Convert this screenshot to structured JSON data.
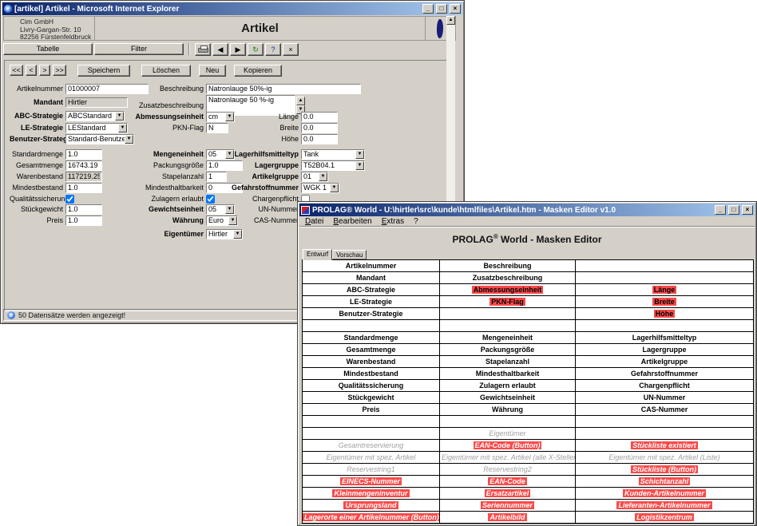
{
  "ie_window": {
    "title": "[artikel] Artikel - Microsoft Internet Explorer",
    "window_buttons": {
      "minimize": "_",
      "maximize": "□",
      "close": "×"
    },
    "company": {
      "line1": "Cim GmbH",
      "line2": "Livry-Gargan-Str. 10",
      "line3": "82256 Fürstenfeldbruck"
    },
    "page_title": "Artikel",
    "view_tabs": [
      {
        "label": "Tabelle"
      },
      {
        "label": "Filter"
      }
    ],
    "toolbar": {
      "prev_glyph": "◀",
      "next_glyph": "▶",
      "refresh_glyph": "↻",
      "help_glyph": "?",
      "close_glyph": "×",
      "scroll_up_glyph": "▲"
    },
    "record_nav": [
      "<<",
      "<",
      ">",
      ">>"
    ],
    "actions": [
      "Speichern",
      "Löschen",
      "Neu",
      "Kopieren"
    ],
    "form": {
      "artikelnummer": {
        "label": "Artikelnummer",
        "value": "01000007"
      },
      "mandant": {
        "label": "Mandant",
        "value": "Hirtler"
      },
      "abc_strategie": {
        "label": "ABC-Strategie",
        "value": "ABCStandard"
      },
      "le_strategie": {
        "label": "LE-Strategie",
        "value": "LEStandard"
      },
      "benutzer_strategie": {
        "label": "Benutzer-Strategie",
        "value": "Standard-Benutzer"
      },
      "beschreibung": {
        "label": "Beschreibung",
        "value": "Natronlauge 50%-ig"
      },
      "zusatzbeschreibung": {
        "label": "Zusatzbeschreibung",
        "value": "Natronlauge 50 %-ig"
      },
      "abmessungseinheit": {
        "label": "Abmessungseinheit",
        "value": "cm"
      },
      "pkn_flag": {
        "label": "PKN-Flag",
        "value": "N"
      },
      "laenge": {
        "label": "Länge",
        "value": "0.0"
      },
      "breite": {
        "label": "Breite",
        "value": "0.0"
      },
      "hoehe": {
        "label": "Höhe",
        "value": "0.0"
      },
      "standardmenge": {
        "label": "Standardmenge",
        "value": "1.0"
      },
      "gesamtmenge": {
        "label": "Gesamtmenge",
        "value": "16743.19"
      },
      "warenbestand": {
        "label": "Warenbestand",
        "value": "117219.25"
      },
      "mindestbestand": {
        "label": "Mindestbestand",
        "value": "1.0"
      },
      "qualitaetssicherung": {
        "label": "Qualitätssicherung",
        "checked": "checked"
      },
      "stueckgewicht": {
        "label": "Stückgewicht",
        "value": "1.0"
      },
      "preis": {
        "label": "Preis",
        "value": "1.0"
      },
      "mengeneinheit": {
        "label": "Mengeneinheit",
        "value": "05"
      },
      "packungsgroesse": {
        "label": "Packungsgröße",
        "value": "1.0"
      },
      "stapelanzahl": {
        "label": "Stapelanzahl",
        "value": "1"
      },
      "mindesthaltbarkeit": {
        "label": "Mindesthaltbarkeit",
        "value": "0"
      },
      "zulagern_erlaubt": {
        "label": "Zulagern erlaubt",
        "checked": "checked"
      },
      "gewichtseinheit": {
        "label": "Gewichtseinheit",
        "value": "05"
      },
      "waehrung": {
        "label": "Währung",
        "value": "Euro"
      },
      "eigentuemer": {
        "label": "Eigentümer",
        "value": "Hirtler"
      },
      "lagerhilfsmitteltyp": {
        "label": "Lagerhilfsmitteltyp",
        "value": "Tank"
      },
      "lagergruppe": {
        "label": "Lagergruppe",
        "value": "T52B04.1"
      },
      "artikelgruppe": {
        "label": "Artikelgruppe",
        "value": "01"
      },
      "gefahrstoffnummer": {
        "label": "Gefahrstoffnummer",
        "value": "WGK 1"
      },
      "chargenpflicht": {
        "label": "Chargenpflicht"
      },
      "un_nummer": {
        "label": "UN-Nummer",
        "value": "null"
      },
      "cas_nummer": {
        "label": "CAS-Nummer",
        "value": ""
      }
    },
    "status": "50 Datensätze werden angezeigt!"
  },
  "editor_window": {
    "title": "PROLAG® World - U:\\hirtler\\src\\kunde\\htmlfiles\\Artikel.htm - Masken Editor v1.0",
    "window_buttons": {
      "minimize": "_",
      "maximize": "□",
      "close": "×"
    },
    "menu": [
      "Datei",
      "Bearbeiten",
      "Extras",
      "?"
    ],
    "heading": {
      "brand": "PROLAG",
      "reg": "®",
      "rest": " World - Masken Editor"
    },
    "tabs": [
      {
        "label": "Entwurf"
      },
      {
        "label": "Vorschau"
      }
    ],
    "colors": {
      "highlight_red": "#fa4a4a",
      "disabled_gray": "#a0a0a0"
    },
    "table_rows": [
      [
        {
          "t": "Artikelnummer"
        },
        {
          "t": "Beschreibung"
        },
        {}
      ],
      [
        {
          "t": "Mandant"
        },
        {
          "t": "Zusatzbeschreibung"
        },
        {}
      ],
      [
        {
          "t": "ABC-Strategie"
        },
        {
          "t": "Abmessungseinheit",
          "s": "r"
        },
        {
          "t": "Länge",
          "s": "r"
        }
      ],
      [
        {
          "t": "LE-Strategie"
        },
        {
          "t": "PKN-Flag",
          "s": "r"
        },
        {
          "t": "Breite",
          "s": "r"
        }
      ],
      [
        {
          "t": "Benutzer-Strategie"
        },
        {},
        {
          "t": "Höhe",
          "s": "r"
        }
      ],
      [
        {},
        {},
        {}
      ],
      [
        {
          "t": "Standardmenge"
        },
        {
          "t": "Mengeneinheit"
        },
        {
          "t": "Lagerhilfsmitteltyp"
        }
      ],
      [
        {
          "t": "Gesamtmenge"
        },
        {
          "t": "Packungsgröße"
        },
        {
          "t": "Lagergruppe"
        }
      ],
      [
        {
          "t": "Warenbestand"
        },
        {
          "t": "Stapelanzahl"
        },
        {
          "t": "Artikelgruppe"
        }
      ],
      [
        {
          "t": "Mindestbestand"
        },
        {
          "t": "Mindesthaltbarkeit"
        },
        {
          "t": "Gefahrstoffnummer"
        }
      ],
      [
        {
          "t": "Qualitätssicherung"
        },
        {
          "t": "Zulagern erlaubt"
        },
        {
          "t": "Chargenpflicht"
        }
      ],
      [
        {
          "t": "Stückgewicht"
        },
        {
          "t": "Gewichtseinheit"
        },
        {
          "t": "UN-Nummer"
        }
      ],
      [
        {
          "t": "Preis"
        },
        {
          "t": "Währung"
        },
        {
          "t": "CAS-Nummer"
        }
      ],
      [
        {},
        {},
        {}
      ],
      [
        {},
        {
          "t": "Eigentümer",
          "s": "g"
        },
        {}
      ],
      [
        {
          "t": "Gesamtreservierung",
          "s": "g"
        },
        {
          "t": "EAN-Code ",
          "b": "(Button)",
          "s": "rl"
        },
        {
          "t": "Stückliste existiert",
          "s": "rl"
        }
      ],
      [
        {
          "t": "Eigentümer mit spez. Artikel",
          "s": "g"
        },
        {
          "t": "Eigentümer mit spez. Artikel (alle X-Stellen)",
          "s": "g"
        },
        {
          "t": "Eigentümer mit spez. Artikel (Liste)",
          "s": "g"
        }
      ],
      [
        {
          "t": "Reservestring1",
          "s": "g"
        },
        {
          "t": "Reservestring2",
          "s": "g"
        },
        {
          "t": "Stückliste ",
          "b": "(Button)",
          "s": "rl"
        }
      ],
      [
        {
          "t": "EINECS-Nummer",
          "s": "rl"
        },
        {
          "t": "EAN-Code",
          "s": "rl"
        },
        {
          "t": "Schichtanzahl",
          "s": "rl"
        }
      ],
      [
        {
          "t": "Kleinmengeninventur",
          "s": "rl"
        },
        {
          "t": "Ersatzartikel",
          "s": "rl"
        },
        {
          "t": "Kunden-Artikelnummer",
          "s": "rl"
        }
      ],
      [
        {
          "t": "Ursprungsland",
          "s": "rl"
        },
        {
          "t": "Seriennummer",
          "s": "rl"
        },
        {
          "t": "Lieferanten-Artikelnummer",
          "s": "rl"
        }
      ],
      [
        {
          "t": "Lagerorte einer Artikelnummer ",
          "b": "(Button)",
          "s": "rl"
        },
        {
          "t": "Artikelbild",
          "s": "rl"
        },
        {
          "t": "Logistikzentrum",
          "s": "rl"
        }
      ]
    ]
  }
}
